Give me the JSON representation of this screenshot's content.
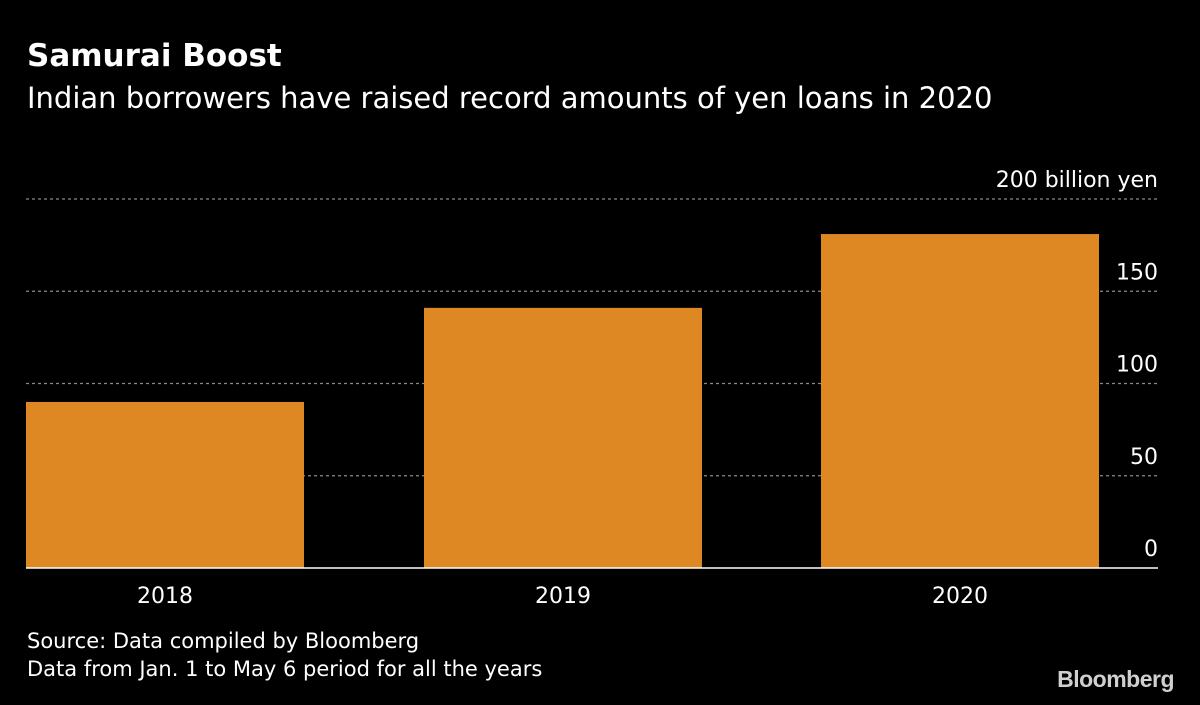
{
  "header": {
    "title": "Samurai Boost",
    "subtitle": "Indian borrowers have raised record amounts of yen loans in 2020"
  },
  "chart_data": {
    "type": "bar",
    "categories": [
      "2018",
      "2019",
      "2020"
    ],
    "values": [
      90,
      141,
      181
    ],
    "unit_label": "200 billion yen",
    "yticks": [
      "0",
      "50",
      "100",
      "150",
      "200 billion yen"
    ],
    "ytick_values": [
      0,
      50,
      100,
      150,
      200
    ],
    "ylim": [
      0,
      200
    ],
    "grid": true,
    "bar_color": "#dd8823",
    "grid_color": "#8a8a8a",
    "axis_color": "#ffffff"
  },
  "footer": {
    "source": "Source: Data compiled by Bloomberg",
    "note": "Data from Jan. 1 to May 6 period for all the years",
    "logo": "Bloomberg"
  }
}
